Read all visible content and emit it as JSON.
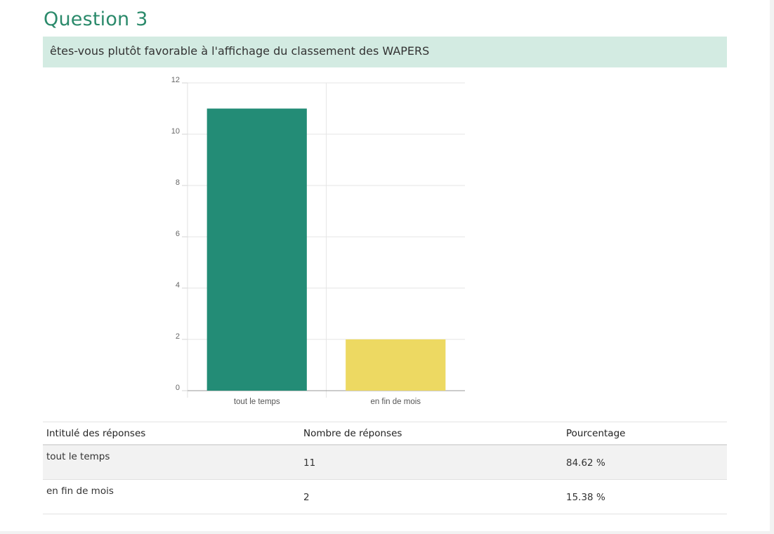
{
  "question": {
    "title": "Question 3",
    "text": "êtes-vous plutôt favorable à l'affichage du classement des WAPERS"
  },
  "chart_data": {
    "type": "bar",
    "categories": [
      "tout le temps",
      "en fin de mois"
    ],
    "values": [
      11,
      2
    ],
    "colors": [
      "#238c76",
      "#edd962"
    ],
    "ylim": [
      0,
      12
    ],
    "yticks": [
      0,
      2,
      4,
      6,
      8,
      10,
      12
    ],
    "grid": true,
    "title": "",
    "xlabel": "",
    "ylabel": ""
  },
  "table": {
    "headers": [
      "Intitulé des réponses",
      "Nombre de réponses",
      "Pourcentage"
    ],
    "rows": [
      [
        "tout le temps",
        "11",
        "84.62 %"
      ],
      [
        "en fin de mois",
        "2",
        "15.38 %"
      ]
    ]
  }
}
